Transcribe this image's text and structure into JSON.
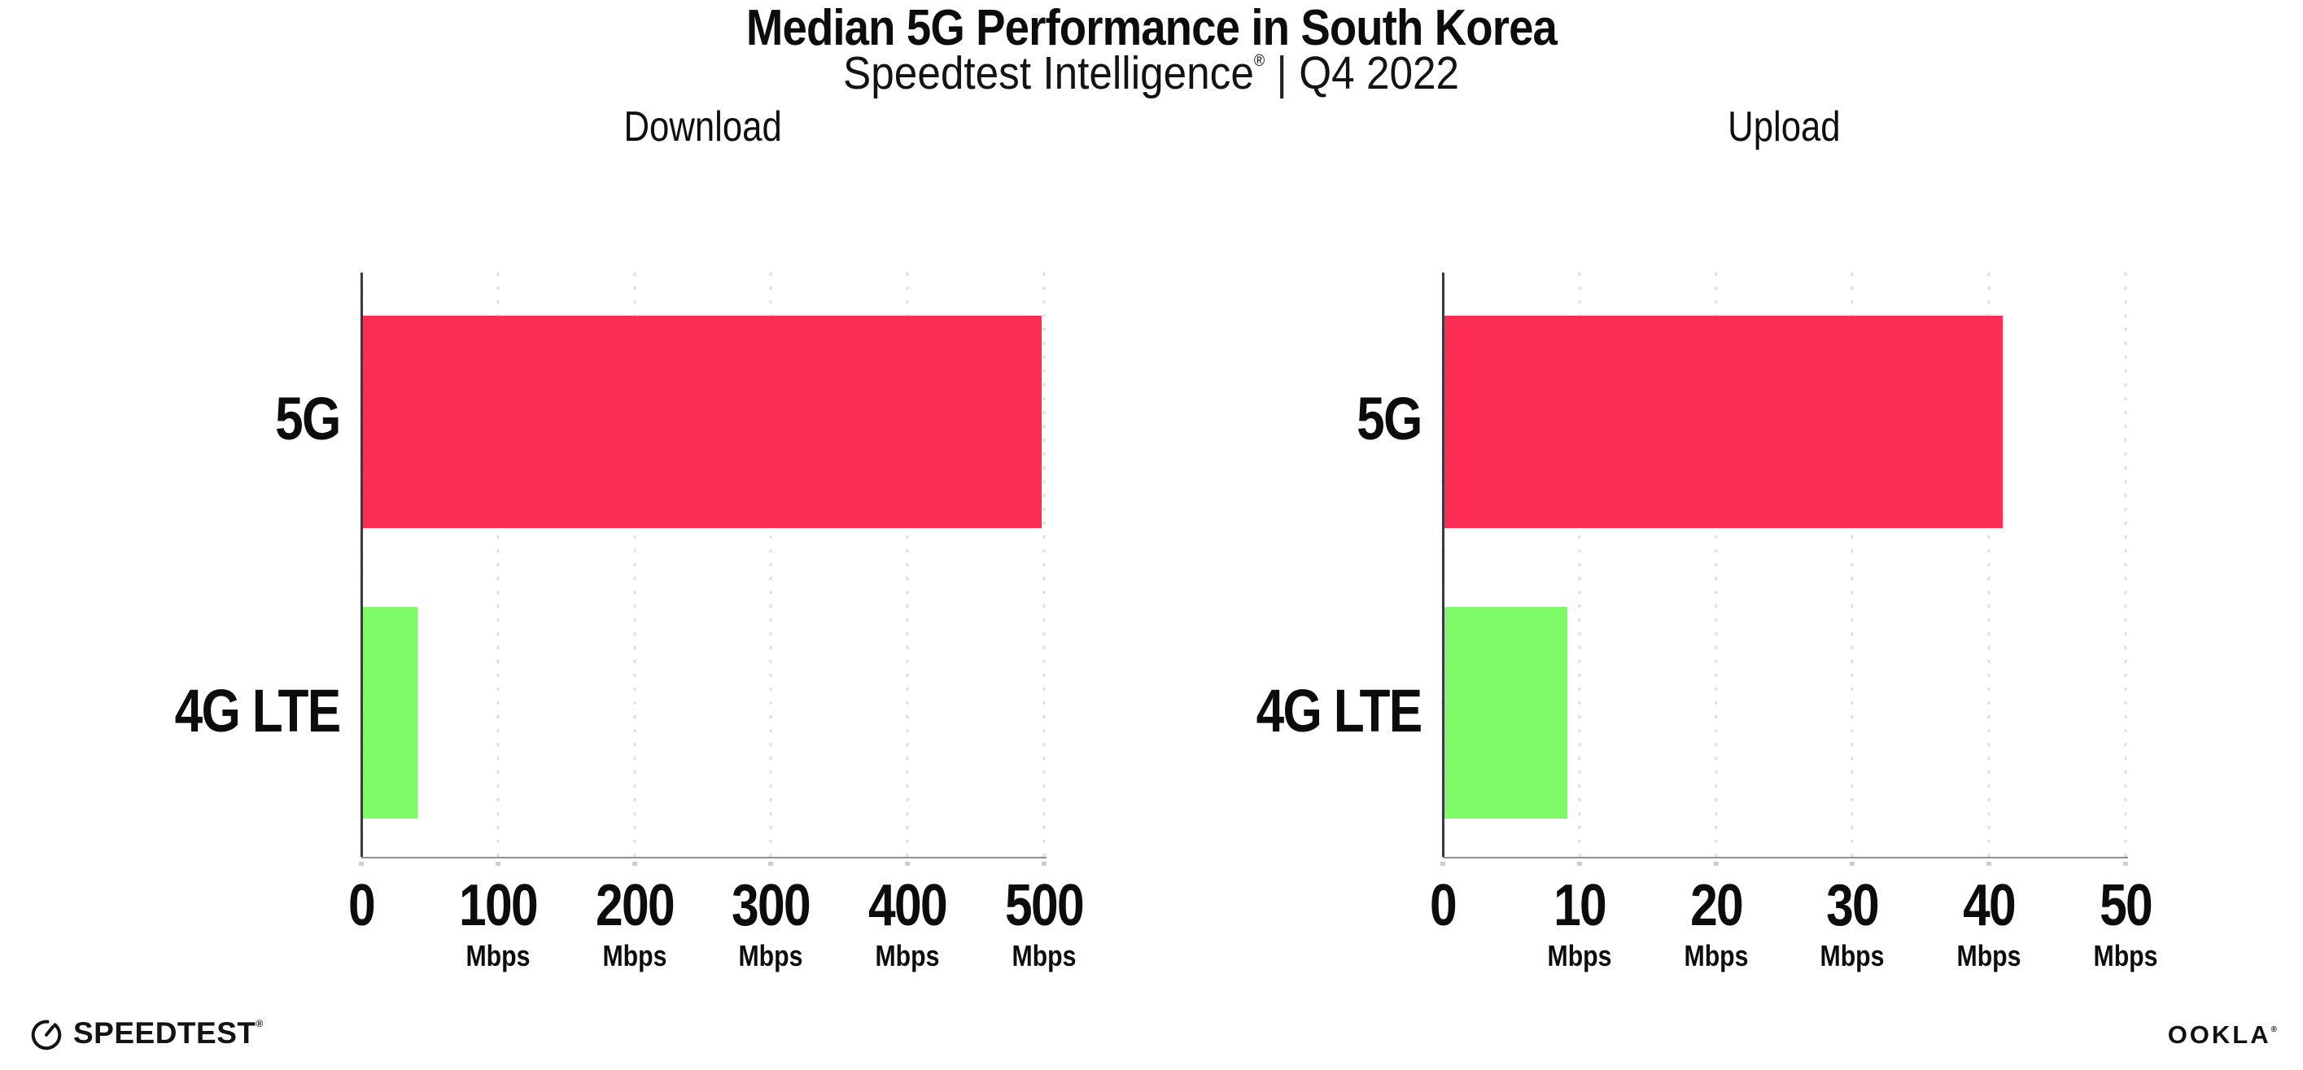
{
  "header": {
    "title": "Median 5G Performance in South Korea",
    "subtitle": {
      "product": "Speedtest Intelligence",
      "trademark": "®",
      "separator": "|",
      "period": "Q4 2022"
    }
  },
  "colors": {
    "bar_5g": "#fd2d55",
    "bar_4g_lte": "#7efa68",
    "axis_y_line": "#3a3a44",
    "axis_x_line": "#8f8f94",
    "gridline": "#dbdfeb"
  },
  "chart_data": [
    {
      "type": "bar",
      "orientation": "horizontal",
      "title": "Download",
      "categories": [
        "5G",
        "4G LTE"
      ],
      "values": [
        498,
        41
      ],
      "unit": "Mbps",
      "xlim": [
        0,
        500
      ],
      "tick_labels": [
        "0",
        "100",
        "200",
        "300",
        "400",
        "500"
      ],
      "bar_colors": [
        "#fd2d55",
        "#7efa68"
      ],
      "grid": "dotted-vertical",
      "legend": "none"
    },
    {
      "type": "bar",
      "orientation": "horizontal",
      "title": "Upload",
      "categories": [
        "5G",
        "4G LTE"
      ],
      "values": [
        41,
        9.1
      ],
      "unit": "Mbps",
      "xlim": [
        0,
        50
      ],
      "tick_labels": [
        "0",
        "10",
        "20",
        "30",
        "40",
        "50"
      ],
      "bar_colors": [
        "#fd2d55",
        "#7efa68"
      ],
      "grid": "dotted-vertical",
      "legend": "none"
    }
  ],
  "footer": {
    "speedtest_label": "SPEEDTEST",
    "speedtest_trademark": "®",
    "ookla_label": "OOKLA",
    "ookla_trademark": "®"
  }
}
